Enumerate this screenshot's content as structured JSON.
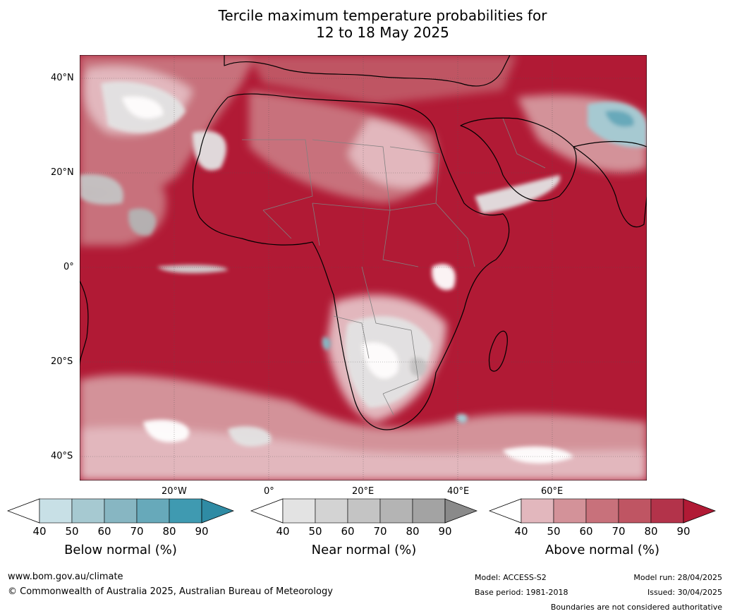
{
  "title_line1": "Tercile maximum temperature probabilities for",
  "title_line2": "12 to 18 May 2025",
  "map": {
    "region": "Africa",
    "lat_labels": [
      "40°N",
      "20°N",
      "0°",
      "20°S",
      "40°S"
    ],
    "lon_labels": [
      "20°W",
      "0°",
      "20°E",
      "40°E",
      "60°E"
    ],
    "dominant_category": "Above normal"
  },
  "colorbars": [
    {
      "label": "Below normal (%)",
      "ticks": [
        "40",
        "50",
        "60",
        "70",
        "80",
        "90"
      ],
      "colors": [
        "#ffffff",
        "#c8e0e6",
        "#a6c9d1",
        "#87b6c2",
        "#67a9ba",
        "#3f9ab1",
        "#2f8ba4"
      ]
    },
    {
      "label": "Near normal (%)",
      "ticks": [
        "40",
        "50",
        "60",
        "70",
        "80",
        "90"
      ],
      "colors": [
        "#ffffff",
        "#e3e3e3",
        "#d3d3d3",
        "#c4c4c4",
        "#b4b4b4",
        "#a3a3a3",
        "#8a8a8a"
      ]
    },
    {
      "label": "Above normal (%)",
      "ticks": [
        "40",
        "50",
        "60",
        "70",
        "80",
        "90"
      ],
      "colors": [
        "#ffffff",
        "#e2b7bd",
        "#d39299",
        "#c8717b",
        "#bf5563",
        "#b3334a",
        "#b11a35"
      ]
    }
  ],
  "footer": {
    "website": "www.bom.gov.au/climate",
    "copyright": "© Commonwealth of Australia 2025, Australian Bureau of Meteorology",
    "model": "Model: ACCESS-S2",
    "base_period": "Base period: 1981-2018",
    "model_run": "Model run: 28/04/2025",
    "issued": "Issued: 30/04/2025",
    "disclaimer": "Boundaries are not considered authoritative"
  }
}
